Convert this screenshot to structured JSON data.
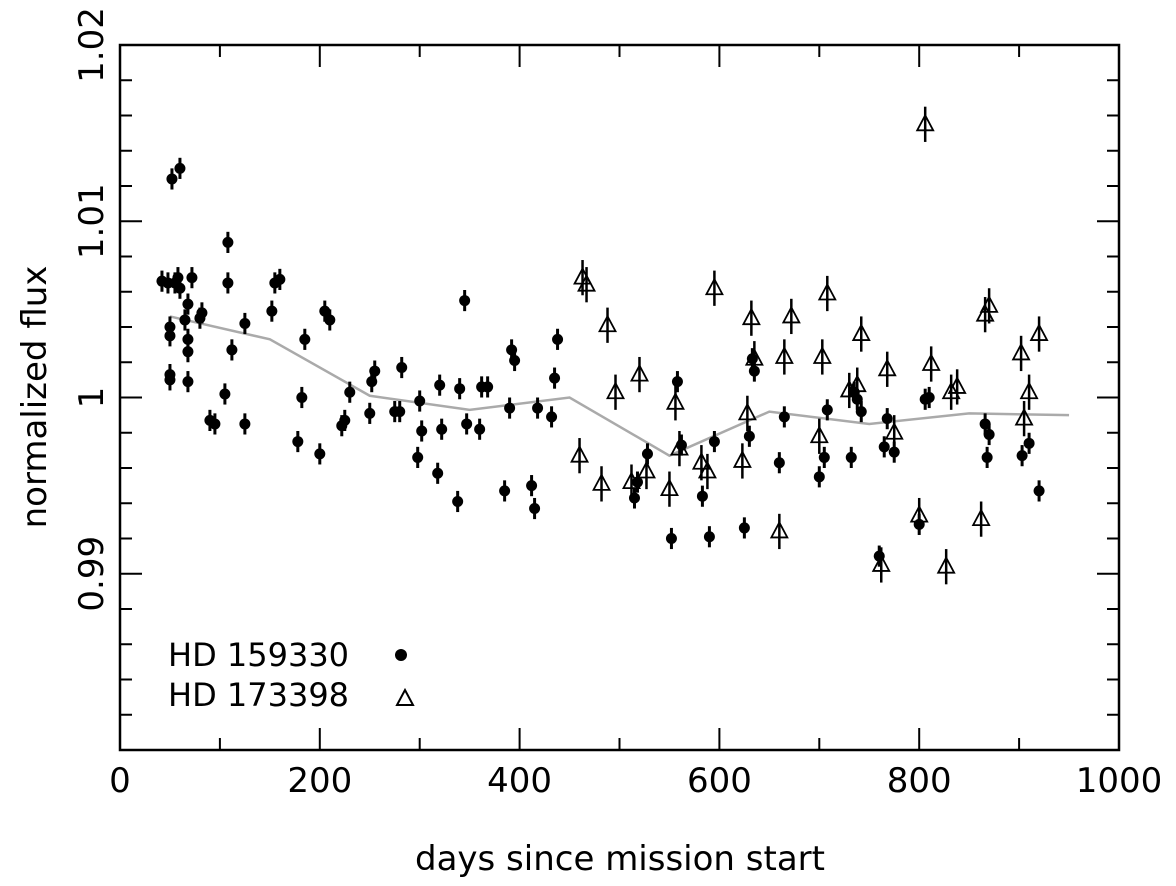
{
  "chart_data": {
    "type": "scatter",
    "xlabel": "days since mission start",
    "ylabel": "normalized flux",
    "xlim": [
      0,
      1000
    ],
    "ylim": [
      0.98,
      1.02
    ],
    "x_ticks": [
      0,
      200,
      400,
      600,
      800,
      1000
    ],
    "x_tick_labels": [
      "0",
      "200",
      "400",
      "600",
      "800",
      "1000"
    ],
    "y_ticks": [
      0.99,
      1.0,
      1.01,
      1.02
    ],
    "y_tick_labels": [
      "0.99",
      "1",
      "1.01",
      "1.02"
    ],
    "grid": false,
    "legend_position": "bottom-left",
    "series": [
      {
        "name": "HD 159330",
        "marker": "filled-circle",
        "color": "#000000",
        "error_bar": 0.0006,
        "points": [
          [
            42,
            1.0066
          ],
          [
            48,
            1.0065
          ],
          [
            50,
            1.004
          ],
          [
            50,
            1.0035
          ],
          [
            50,
            1.0013
          ],
          [
            50,
            1.001
          ],
          [
            52,
            1.0124
          ],
          [
            55,
            1.0065
          ],
          [
            58,
            1.0068
          ],
          [
            60,
            1.0062
          ],
          [
            60,
            1.013
          ],
          [
            65,
            1.0044
          ],
          [
            68,
            1.0033
          ],
          [
            68,
            1.0053
          ],
          [
            68,
            1.0026
          ],
          [
            68,
            1.0009
          ],
          [
            72,
            1.0068
          ],
          [
            80,
            1.0045
          ],
          [
            82,
            1.0048
          ],
          [
            90,
            0.9987
          ],
          [
            95,
            0.9985
          ],
          [
            105,
            1.0002
          ],
          [
            108,
            1.0088
          ],
          [
            108,
            1.0065
          ],
          [
            112,
            1.0027
          ],
          [
            125,
            1.0042
          ],
          [
            125,
            0.9985
          ],
          [
            152,
            1.0049
          ],
          [
            155,
            1.0065
          ],
          [
            160,
            1.0067
          ],
          [
            178,
            0.9975
          ],
          [
            182,
            1.0
          ],
          [
            185,
            1.0033
          ],
          [
            200,
            0.9968
          ],
          [
            205,
            1.0049
          ],
          [
            210,
            1.0044
          ],
          [
            222,
            0.9984
          ],
          [
            225,
            0.9987
          ],
          [
            230,
            1.0003
          ],
          [
            250,
            0.9991
          ],
          [
            252,
            1.0009
          ],
          [
            255,
            1.0015
          ],
          [
            275,
            0.9992
          ],
          [
            280,
            0.9992
          ],
          [
            282,
            1.0017
          ],
          [
            298,
            0.9966
          ],
          [
            300,
            0.9998
          ],
          [
            302,
            0.9981
          ],
          [
            318,
            0.9957
          ],
          [
            320,
            1.0007
          ],
          [
            322,
            0.9982
          ],
          [
            338,
            0.9941
          ],
          [
            340,
            1.0005
          ],
          [
            345,
            1.0055
          ],
          [
            347,
            0.9985
          ],
          [
            360,
            0.9982
          ],
          [
            362,
            1.0006
          ],
          [
            368,
            1.0006
          ],
          [
            385,
            0.9947
          ],
          [
            390,
            0.9994
          ],
          [
            392,
            1.0027
          ],
          [
            395,
            1.0021
          ],
          [
            412,
            0.995
          ],
          [
            415,
            0.9937
          ],
          [
            418,
            0.9994
          ],
          [
            432,
            0.9989
          ],
          [
            435,
            1.0011
          ],
          [
            438,
            1.0033
          ],
          [
            515,
            0.9943
          ],
          [
            518,
            0.9952
          ],
          [
            528,
            0.9968
          ],
          [
            552,
            0.992
          ],
          [
            558,
            1.0009
          ],
          [
            562,
            0.9973
          ],
          [
            583,
            0.9944
          ],
          [
            590,
            0.9921
          ],
          [
            595,
            0.9975
          ],
          [
            625,
            0.9926
          ],
          [
            630,
            0.9978
          ],
          [
            633,
            1.0022
          ],
          [
            635,
            1.0015
          ],
          [
            660,
            0.9963
          ],
          [
            665,
            0.9989
          ],
          [
            700,
            0.9955
          ],
          [
            705,
            0.9966
          ],
          [
            708,
            0.9993
          ],
          [
            732,
            0.9966
          ],
          [
            735,
            1.0003
          ],
          [
            738,
            0.9999
          ],
          [
            742,
            0.9992
          ],
          [
            760,
            0.991
          ],
          [
            765,
            0.9972
          ],
          [
            768,
            0.9988
          ],
          [
            775,
            0.9969
          ],
          [
            800,
            0.9928
          ],
          [
            806,
            0.9999
          ],
          [
            810,
            1.0
          ],
          [
            866,
            0.9985
          ],
          [
            868,
            0.9966
          ],
          [
            870,
            0.9979
          ],
          [
            903,
            0.9967
          ],
          [
            910,
            0.9974
          ],
          [
            920,
            0.9947
          ]
        ]
      },
      {
        "name": "HD 173398",
        "marker": "open-triangle",
        "color": "#000000",
        "error_bar": 0.001,
        "points": [
          [
            460,
            0.9967
          ],
          [
            463,
            1.0068
          ],
          [
            467,
            1.0064
          ],
          [
            482,
            0.9951
          ],
          [
            488,
            1.0041
          ],
          [
            496,
            1.0003
          ],
          [
            512,
            0.9952
          ],
          [
            520,
            1.0013
          ],
          [
            527,
            0.9958
          ],
          [
            550,
            0.9948
          ],
          [
            556,
            0.9997
          ],
          [
            560,
            0.9971
          ],
          [
            582,
            0.9963
          ],
          [
            588,
            0.9958
          ],
          [
            595,
            1.0062
          ],
          [
            623,
            0.9964
          ],
          [
            628,
            0.9991
          ],
          [
            632,
            1.0045
          ],
          [
            635,
            1.0022
          ],
          [
            660,
            0.9924
          ],
          [
            665,
            1.0023
          ],
          [
            672,
            1.0046
          ],
          [
            700,
            0.9978
          ],
          [
            703,
            1.0023
          ],
          [
            708,
            1.0059
          ],
          [
            730,
            1.0004
          ],
          [
            738,
            1.0007
          ],
          [
            742,
            1.0036
          ],
          [
            762,
            0.9905
          ],
          [
            768,
            1.0016
          ],
          [
            775,
            0.998
          ],
          [
            800,
            0.9933
          ],
          [
            806,
            1.0155
          ],
          [
            812,
            1.0019
          ],
          [
            827,
            0.9904
          ],
          [
            832,
            1.0003
          ],
          [
            838,
            1.0006
          ],
          [
            862,
            0.9931
          ],
          [
            866,
            1.0047
          ],
          [
            870,
            1.0052
          ],
          [
            902,
            1.0025
          ],
          [
            905,
            0.9988
          ],
          [
            910,
            1.0003
          ],
          [
            920,
            1.0036
          ]
        ]
      },
      {
        "name": "",
        "marker": "line",
        "color": "#aaaaaa",
        "points": [
          [
            50,
            1.0046
          ],
          [
            150,
            1.0033
          ],
          [
            250,
            1.0001
          ],
          [
            350,
            0.9993
          ],
          [
            450,
            1.0
          ],
          [
            550,
            0.9967
          ],
          [
            650,
            0.9992
          ],
          [
            750,
            0.9985
          ],
          [
            850,
            0.9991
          ],
          [
            950,
            0.999
          ]
        ]
      }
    ]
  },
  "legend": {
    "items": [
      {
        "label": "HD 159330",
        "marker": "filled-circle"
      },
      {
        "label": "HD 173398",
        "marker": "open-triangle"
      }
    ]
  }
}
